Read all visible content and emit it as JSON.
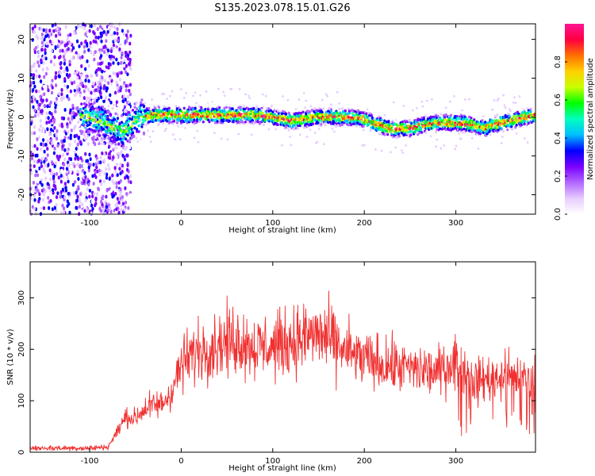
{
  "title": "S135.2023.078.15.01.G26",
  "colors": {
    "snr_line": "#f03030",
    "axis": "#000000",
    "background": "#ffffff",
    "colormap": [
      "#ffffff",
      "#e6ccff",
      "#b266ff",
      "#7a00ff",
      "#0000ff",
      "#00bfff",
      "#00ffc0",
      "#00ff00",
      "#c8ff00",
      "#ffd000",
      "#ff7000",
      "#ff0040",
      "#ff1493"
    ]
  },
  "chart_data": [
    {
      "type": "heatmap",
      "title": "S135.2023.078.15.01.G26",
      "xlabel": "Height of straight line (km)",
      "ylabel": "Frequency (Hz)",
      "xlim": [
        -165,
        387
      ],
      "ylim": [
        -25,
        24
      ],
      "x_ticks": [
        -100,
        0,
        100,
        200,
        300
      ],
      "y_ticks": [
        -20,
        -10,
        0,
        10,
        20
      ],
      "grid": false,
      "colorbar": {
        "label": "Normalized spectral amplitude",
        "range": [
          0,
          1
        ],
        "ticks": [
          0.0,
          0.2,
          0.4,
          0.6,
          0.8
        ]
      },
      "ridge": {
        "x": [
          -100,
          -80,
          -65,
          -55,
          -45,
          -30,
          0,
          50,
          80,
          100,
          120,
          150,
          180,
          200,
          215,
          230,
          250,
          265,
          280,
          300,
          320,
          330,
          340,
          360,
          387
        ],
        "frequency": [
          0,
          -2,
          -4,
          -2,
          0,
          0.5,
          0.5,
          0.5,
          0.5,
          0,
          -1,
          0,
          0,
          -0.5,
          -2,
          -3,
          -3,
          -2,
          -1.5,
          -1.5,
          -2,
          -3,
          -2,
          -1,
          0.5
        ]
      }
    },
    {
      "type": "line",
      "xlabel": "Height of straight line (km)",
      "ylabel": "SNR (10 * v/v)",
      "xlim": [
        -165,
        387
      ],
      "ylim": [
        0,
        370
      ],
      "x_ticks": [
        -100,
        0,
        100,
        200,
        300
      ],
      "y_ticks": [
        0,
        100,
        200,
        300
      ],
      "grid": false,
      "series": [
        {
          "x": [
            -165,
            -100,
            -80,
            -60,
            -50,
            -40,
            -20,
            -10,
            0,
            20,
            40,
            60,
            80,
            100,
            120,
            140,
            150,
            160,
            180,
            200,
            220,
            240,
            260,
            280,
            300,
            320,
            340,
            360,
            387
          ],
          "values": [
            8,
            8,
            10,
            70,
            65,
            85,
            95,
            120,
            170,
            200,
            210,
            220,
            205,
            205,
            215,
            225,
            230,
            220,
            195,
            180,
            170,
            165,
            160,
            155,
            180,
            140,
            145,
            150,
            140
          ]
        }
      ]
    }
  ]
}
